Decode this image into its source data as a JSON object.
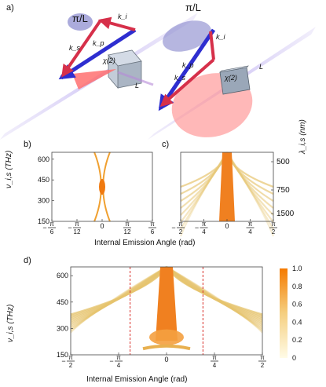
{
  "figure": {
    "panels": {
      "a": "a)",
      "b": "b)",
      "c": "c)",
      "d": "d)"
    },
    "panel_a": {
      "pi_over_L": "π/L",
      "k_i": "k_i",
      "k_s": "k_s",
      "k_p": "k_p",
      "chi2": "χ(2)",
      "L": "L",
      "colors": {
        "pump": "#2e2ed0",
        "signal": "#d6304a",
        "beam": "#c9bdf0",
        "cone": "#ff9a9a"
      }
    },
    "shared_xlabel": "Internal Emission Angle (rad)",
    "ylabel_freq": "ν_i,s (THz)",
    "ylabel_wavelength": "λ_i,s (nm)"
  },
  "chart_data": [
    {
      "id": "b",
      "type": "heatmap",
      "ylabel": "ν_i,s (THz)",
      "xlabel": "Internal Emission Angle (rad)",
      "yticks": [
        150,
        300,
        450,
        600
      ],
      "ylim": [
        150,
        650
      ],
      "xticks": [
        "-π/6",
        "-π/12",
        "0",
        "π/12",
        "π/6"
      ],
      "xlim": [
        -0.5236,
        0.5236
      ]
    },
    {
      "id": "c",
      "type": "heatmap",
      "ylabel": "λ_i,s (nm)",
      "xlabel": "Internal Emission Angle (rad)",
      "yticks": [
        500,
        750,
        1500
      ],
      "xticks": [
        "-π/2",
        "-π/4",
        "0",
        "π/4",
        "π/2"
      ],
      "xlim": [
        -1.5708,
        1.5708
      ]
    },
    {
      "id": "d",
      "type": "heatmap",
      "ylabel": "ν_i,s (THz)",
      "xlabel": "Internal Emission Angle (rad)",
      "yticks": [
        150,
        300,
        450,
        600
      ],
      "ylim": [
        150,
        650
      ],
      "xticks": [
        "-π/2",
        "-π/4",
        "0",
        "π/4",
        "π/2"
      ],
      "xlim": [
        -1.5708,
        1.5708
      ],
      "colorbar": {
        "ticks": [
          0,
          0.2,
          0.4,
          0.6,
          0.8,
          1.0
        ],
        "tick_labels": [
          "0",
          "0.2",
          "0.4",
          "0.6",
          "0.8",
          "1.0"
        ],
        "range": [
          0,
          1
        ],
        "low_color": "#fffbe6",
        "high_color": "#f57a00"
      }
    }
  ]
}
